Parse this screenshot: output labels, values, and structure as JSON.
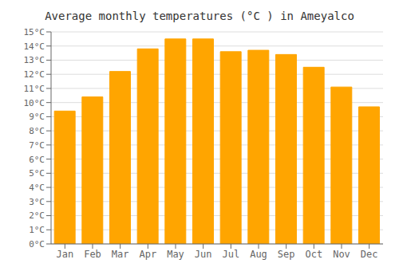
{
  "chart_data": {
    "type": "bar",
    "title": "Average monthly temperatures (°C ) in Ameyalco",
    "categories": [
      "Jan",
      "Feb",
      "Mar",
      "Apr",
      "May",
      "Jun",
      "Jul",
      "Aug",
      "Sep",
      "Oct",
      "Nov",
      "Dec"
    ],
    "values": [
      9.4,
      10.4,
      12.2,
      13.8,
      14.5,
      14.5,
      13.6,
      13.7,
      13.4,
      12.5,
      11.1,
      9.7
    ],
    "color": "#FFA500",
    "ylim": [
      0,
      15
    ],
    "yticks": [
      {
        "value": 0,
        "label": "0°C"
      },
      {
        "value": 1,
        "label": "1°C"
      },
      {
        "value": 2,
        "label": "2°C"
      },
      {
        "value": 3,
        "label": "3°C"
      },
      {
        "value": 4,
        "label": "4°C"
      },
      {
        "value": 5,
        "label": "5°C"
      },
      {
        "value": 6,
        "label": "6°C"
      },
      {
        "value": 7,
        "label": "7°C"
      },
      {
        "value": 8,
        "label": "8°C"
      },
      {
        "value": 9,
        "label": "9°C"
      },
      {
        "value": 10,
        "label": "10°C"
      },
      {
        "value": 11,
        "label": "11°C"
      },
      {
        "value": 12,
        "label": "12°C"
      },
      {
        "value": 13,
        "label": "13°C"
      },
      {
        "value": 14,
        "label": "14°C"
      },
      {
        "value": 15,
        "label": "15°C"
      }
    ],
    "grid": true
  }
}
